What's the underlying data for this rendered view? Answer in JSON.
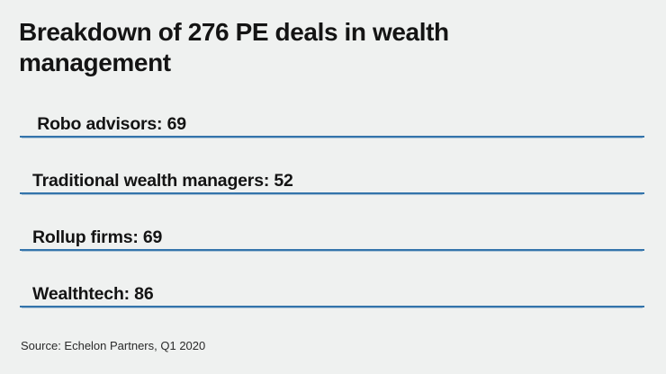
{
  "title": "Breakdown of 276 PE deals in wealth management",
  "items": [
    {
      "label": " Robo advisors: 69"
    },
    {
      "label": "Traditional wealth managers: 52"
    },
    {
      "label": "Rollup firms: 69"
    },
    {
      "label": "Wealthtech: 86"
    }
  ],
  "source": "Source: Echelon Partners, Q1 2020",
  "colors": {
    "background": "#eff1f0",
    "text": "#141414",
    "rule_blue": "#3474ab"
  },
  "chart_data": {
    "type": "table",
    "title": "Breakdown of 276 PE deals in wealth management",
    "categories": [
      "Robo advisors",
      "Traditional wealth managers",
      "Rollup firms",
      "Wealthtech"
    ],
    "values": [
      69,
      52,
      69,
      86
    ],
    "total": 276,
    "source": "Source: Echelon Partners, Q1 2020",
    "legend_position": "none",
    "grid": false
  }
}
